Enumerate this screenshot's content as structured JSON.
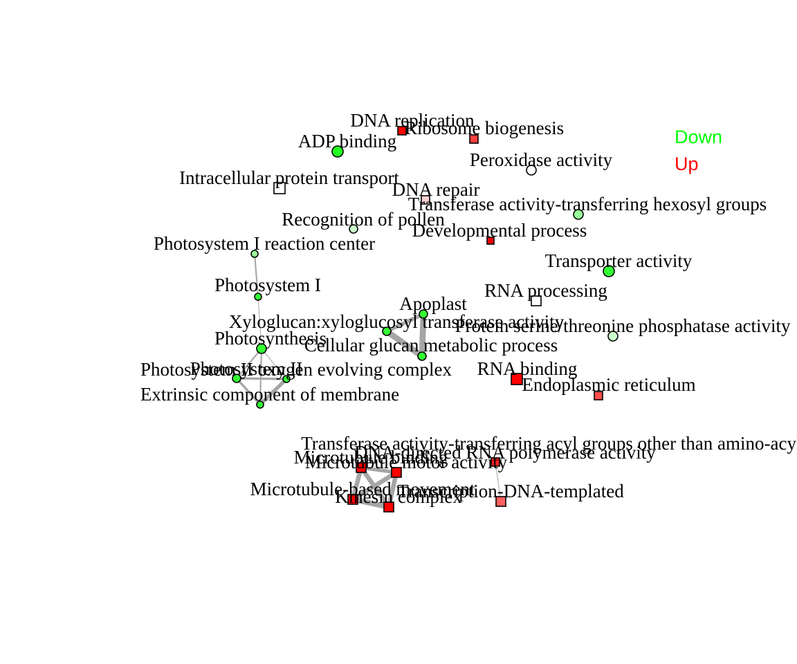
{
  "legend": [
    {
      "label": "Down",
      "color": "#00ff00"
    },
    {
      "label": "Up",
      "color": "#ff0000"
    }
  ],
  "nodes": [
    {
      "id": "dna_replication",
      "label": "DNA replication",
      "shape": "square",
      "fill": "#ff0000"
    },
    {
      "id": "ribosome_biogenesis",
      "label": "Ribosome biogenesis",
      "shape": "square",
      "fill": "#ff4040"
    },
    {
      "id": "adp_binding",
      "label": "ADP binding",
      "shape": "circle",
      "fill": "#22ff22"
    },
    {
      "id": "peroxidase_activity",
      "label": "Peroxidase activity",
      "shape": "circle",
      "fill": "#ffffff"
    },
    {
      "id": "intracellular_protein_transport",
      "label": "Intracellular protein transport",
      "shape": "square",
      "fill": "#ffffff"
    },
    {
      "id": "dna_repair",
      "label": "DNA repair",
      "shape": "square",
      "fill": "#ffd0d0"
    },
    {
      "id": "transferase_hexosyl",
      "label": "Transferase activity-transferring hexosyl groups",
      "shape": "circle",
      "fill": "#99ff99"
    },
    {
      "id": "recognition_of_pollen",
      "label": "Recognition of pollen",
      "shape": "circle",
      "fill": "#ccffcc"
    },
    {
      "id": "developmental_process",
      "label": "Developmental process",
      "shape": "square",
      "fill": "#ee0000"
    },
    {
      "id": "photosystem_i_reaction_center",
      "label": "Photosystem I reaction center",
      "shape": "circle",
      "fill": "#99ff99"
    },
    {
      "id": "transporter_activity",
      "label": "Transporter activity",
      "shape": "circle",
      "fill": "#33ff33"
    },
    {
      "id": "photosystem_i",
      "label": "Photosystem I",
      "shape": "circle",
      "fill": "#33ff33"
    },
    {
      "id": "rna_processing",
      "label": "RNA processing",
      "shape": "square",
      "fill": "#ffffff"
    },
    {
      "id": "apoplast",
      "label": "Apoplast",
      "shape": "circle",
      "fill": "#33ff33"
    },
    {
      "id": "xyloglucan_transferase",
      "label": "Xyloglucan:xyloglucosyl transferase activity",
      "shape": "circle",
      "fill": "#33ff33"
    },
    {
      "id": "protein_phosphatase",
      "label": "Protein serine/threonine phosphatase activity",
      "shape": "circle",
      "fill": "#ccffcc"
    },
    {
      "id": "photosynthesis",
      "label": "Photosynthesis",
      "shape": "circle",
      "fill": "#33ff33"
    },
    {
      "id": "cellular_glucan",
      "label": "Cellular glucan metabolic process",
      "shape": "circle",
      "fill": "#33ff33"
    },
    {
      "id": "photosystem_ii",
      "label": "Photosystem II",
      "shape": "circle",
      "fill": "#33ff33"
    },
    {
      "id": "oxygen_evolving",
      "label": "Photosystem II oxygen evolving complex",
      "shape": "circle",
      "fill": "#33ff33"
    },
    {
      "id": "rna_binding",
      "label": "RNA binding",
      "shape": "square",
      "fill": "#ff0000"
    },
    {
      "id": "endoplasmic_reticulum",
      "label": "Endoplasmic reticulum",
      "shape": "square",
      "fill": "#ff4d4d"
    },
    {
      "id": "extrinsic_membrane",
      "label": "Extrinsic component of membrane",
      "shape": "circle",
      "fill": "#33ff33"
    },
    {
      "id": "transferase_acyl",
      "label": "Transferase activity-transferring acyl groups other than amino-acyl groups",
      "shape": "circle",
      "fill": "#ffffff"
    },
    {
      "id": "microtubule_binding",
      "label": "Microtubule binding",
      "shape": "square",
      "fill": "#ff0000"
    },
    {
      "id": "dna_directed_rna_polymerase",
      "label": "DNA-directed RNA polymerase activity",
      "shape": "square",
      "fill": "#ff2020"
    },
    {
      "id": "microtubule_motor_activity",
      "label": "Microtubule motor activity",
      "shape": "square",
      "fill": "#ff0000"
    },
    {
      "id": "microtubule_based_movement",
      "label": "Microtubule-based movement",
      "shape": "square",
      "fill": "#ff0000"
    },
    {
      "id": "transcription",
      "label": "Transcription-DNA-templated",
      "shape": "square",
      "fill": "#ff6060"
    },
    {
      "id": "kinesin_complex",
      "label": "Kinesin complex",
      "shape": "square",
      "fill": "#ff0000"
    }
  ],
  "edges": [
    {
      "from": "photosystem_i_reaction_center",
      "to": "photosystem_i",
      "weight": 2
    },
    {
      "from": "photosystem_i",
      "to": "photosynthesis",
      "weight": 1
    },
    {
      "from": "photosynthesis",
      "to": "photosystem_ii",
      "weight": 2
    },
    {
      "from": "photosynthesis",
      "to": "oxygen_evolving",
      "weight": 1
    },
    {
      "from": "photosynthesis",
      "to": "extrinsic_membrane",
      "weight": 2
    },
    {
      "from": "photosystem_ii",
      "to": "oxygen_evolving",
      "weight": 3
    },
    {
      "from": "photosystem_ii",
      "to": "extrinsic_membrane",
      "weight": 3
    },
    {
      "from": "oxygen_evolving",
      "to": "extrinsic_membrane",
      "weight": 5
    },
    {
      "from": "apoplast",
      "to": "xyloglucan_transferase",
      "weight": 5
    },
    {
      "from": "apoplast",
      "to": "cellular_glucan",
      "weight": 8
    },
    {
      "from": "xyloglucan_transferase",
      "to": "cellular_glucan",
      "weight": 8
    },
    {
      "from": "microtubule_binding",
      "to": "microtubule_motor_activity",
      "weight": 5
    },
    {
      "from": "microtubule_binding",
      "to": "microtubule_based_movement",
      "weight": 6
    },
    {
      "from": "microtubule_binding",
      "to": "kinesin_complex",
      "weight": 6
    },
    {
      "from": "microtubule_motor_activity",
      "to": "microtubule_based_movement",
      "weight": 6
    },
    {
      "from": "microtubule_motor_activity",
      "to": "kinesin_complex",
      "weight": 6
    },
    {
      "from": "microtubule_based_movement",
      "to": "kinesin_complex",
      "weight": 7
    },
    {
      "from": "dna_directed_rna_polymerase",
      "to": "transcription",
      "weight": 1
    }
  ]
}
